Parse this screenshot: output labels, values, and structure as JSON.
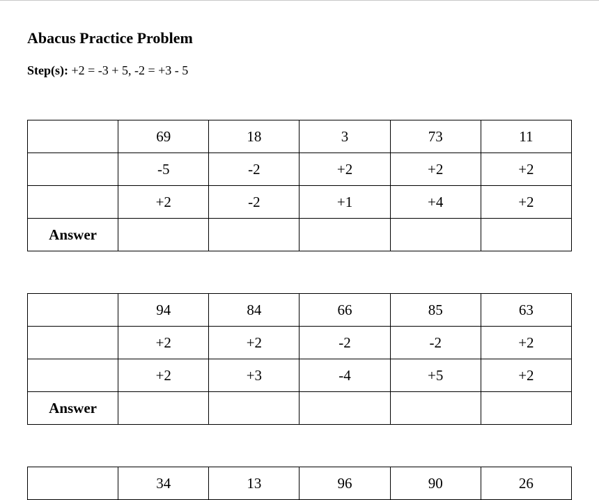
{
  "document": {
    "title": "Abacus Practice Problem",
    "steps_label": "Step(s):",
    "steps_text": " +2 = -3 + 5, -2 = +3 - 5",
    "answer_label": "Answer"
  },
  "problems": [
    {
      "rows": [
        [
          "69",
          "18",
          "3",
          "73",
          "11"
        ],
        [
          "-5",
          "-2",
          "+2",
          "+2",
          "+2"
        ],
        [
          "+2",
          "-2",
          "+1",
          "+4",
          "+2"
        ]
      ]
    },
    {
      "rows": [
        [
          "94",
          "84",
          "66",
          "85",
          "63"
        ],
        [
          "+2",
          "+2",
          "-2",
          "-2",
          "+2"
        ],
        [
          "+2",
          "+3",
          "-4",
          "+5",
          "+2"
        ]
      ]
    },
    {
      "rows": [
        [
          "34",
          "13",
          "96",
          "90",
          "26"
        ]
      ]
    }
  ]
}
